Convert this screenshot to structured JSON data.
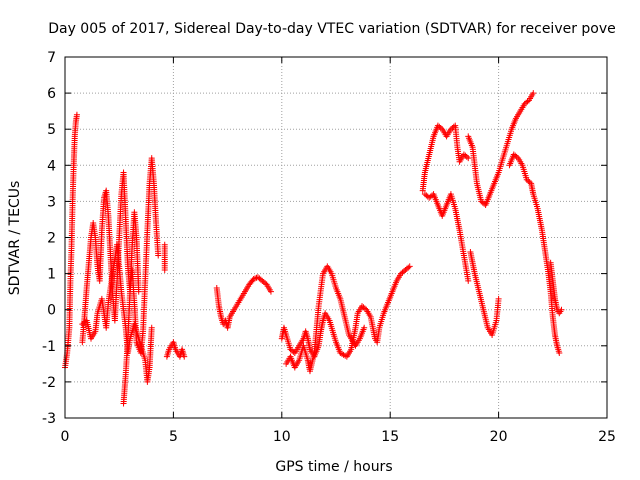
{
  "chart_data": {
    "type": "scatter",
    "title": "Day 005 of 2017, Sidereal Day-to-day VTEC variation (SDTVAR) for receiver pove",
    "xlabel": "GPS time / hours",
    "ylabel": "SDTVAR / TECUs",
    "xlim": [
      0,
      25
    ],
    "ylim": [
      -3,
      7
    ],
    "xticks": [
      0,
      5,
      10,
      15,
      20,
      25
    ],
    "yticks": [
      -3,
      -2,
      -1,
      0,
      1,
      2,
      3,
      4,
      5,
      6,
      7
    ],
    "grid": true,
    "marker": "+",
    "colors": {
      "points": "#ff0000",
      "grid": "#a0a0a0",
      "axes": "#000000"
    },
    "series": [
      {
        "name": "SDTVAR",
        "segments": [
          [
            [
              0.0,
              -1.6
            ],
            [
              0.1,
              -1.2
            ],
            [
              0.2,
              -0.5
            ],
            [
              0.25,
              0.8
            ],
            [
              0.3,
              1.7
            ],
            [
              0.35,
              3.0
            ],
            [
              0.4,
              4.0
            ],
            [
              0.45,
              4.8
            ],
            [
              0.5,
              5.2
            ],
            [
              0.55,
              5.4
            ]
          ],
          [
            [
              0.8,
              -0.9
            ],
            [
              0.9,
              -0.2
            ],
            [
              1.0,
              0.6
            ],
            [
              1.1,
              1.3
            ],
            [
              1.2,
              2.0
            ],
            [
              1.3,
              2.4
            ],
            [
              1.4,
              2.0
            ],
            [
              1.5,
              1.2
            ],
            [
              1.6,
              0.8
            ],
            [
              1.7,
              2.2
            ],
            [
              1.8,
              3.1
            ],
            [
              1.9,
              3.3
            ],
            [
              2.0,
              2.6
            ],
            [
              2.1,
              1.5
            ],
            [
              2.2,
              0.4
            ],
            [
              2.3,
              -0.3
            ],
            [
              2.4,
              0.8
            ],
            [
              2.5,
              2.0
            ],
            [
              2.6,
              3.2
            ],
            [
              2.7,
              3.8
            ],
            [
              2.8,
              2.5
            ],
            [
              2.9,
              1.2
            ],
            [
              3.0,
              0.5
            ],
            [
              3.1,
              1.8
            ],
            [
              3.2,
              2.7
            ],
            [
              3.3,
              2.0
            ],
            [
              3.4,
              0.5
            ]
          ],
          [
            [
              2.7,
              -2.6
            ],
            [
              2.8,
              -1.8
            ],
            [
              2.9,
              -0.8
            ],
            [
              3.0,
              0.5
            ],
            [
              3.1,
              1.1
            ],
            [
              3.2,
              0.2
            ],
            [
              3.3,
              -0.9
            ],
            [
              3.5,
              -1.2
            ],
            [
              3.6,
              -0.6
            ],
            [
              3.7,
              0.8
            ],
            [
              3.8,
              2.2
            ],
            [
              3.9,
              3.5
            ],
            [
              4.0,
              4.2
            ],
            [
              4.1,
              3.5
            ],
            [
              4.2,
              2.4
            ],
            [
              4.3,
              1.5
            ]
          ],
          [
            [
              0.8,
              -0.4
            ],
            [
              1.0,
              -0.3
            ],
            [
              1.2,
              -0.8
            ],
            [
              1.4,
              -0.6
            ],
            [
              1.5,
              -0.1
            ],
            [
              1.7,
              0.3
            ],
            [
              1.9,
              -0.5
            ],
            [
              2.0,
              0.2
            ],
            [
              2.2,
              1.0
            ],
            [
              2.4,
              1.8
            ],
            [
              2.5,
              1.2
            ],
            [
              2.6,
              0.5
            ],
            [
              2.8,
              -0.5
            ],
            [
              2.9,
              -1.2
            ],
            [
              3.0,
              -0.8
            ],
            [
              3.2,
              -0.4
            ],
            [
              3.5,
              -1.0
            ],
            [
              3.7,
              -1.4
            ],
            [
              3.8,
              -2.0
            ],
            [
              3.9,
              -1.6
            ],
            [
              4.0,
              -0.5
            ]
          ],
          [
            [
              4.6,
              1.8
            ],
            [
              4.6,
              1.1
            ]
          ],
          [
            [
              4.7,
              -1.3
            ],
            [
              4.8,
              -1.1
            ],
            [
              4.9,
              -1.0
            ],
            [
              5.0,
              -0.9
            ],
            [
              5.1,
              -1.1
            ],
            [
              5.3,
              -1.3
            ],
            [
              5.4,
              -1.1
            ],
            [
              5.5,
              -1.3
            ]
          ],
          [
            [
              7.0,
              0.6
            ],
            [
              7.1,
              0.1
            ],
            [
              7.2,
              -0.2
            ],
            [
              7.3,
              -0.4
            ],
            [
              7.4,
              -0.3
            ],
            [
              7.5,
              -0.5
            ],
            [
              7.6,
              -0.2
            ],
            [
              7.7,
              -0.1
            ],
            [
              7.9,
              0.1
            ],
            [
              8.1,
              0.3
            ],
            [
              8.3,
              0.5
            ],
            [
              8.5,
              0.7
            ],
            [
              8.7,
              0.85
            ],
            [
              8.9,
              0.9
            ],
            [
              9.1,
              0.8
            ],
            [
              9.3,
              0.7
            ],
            [
              9.5,
              0.5
            ]
          ],
          [
            [
              10.0,
              -0.8
            ],
            [
              10.1,
              -0.5
            ],
            [
              10.2,
              -0.7
            ],
            [
              10.4,
              -1.1
            ],
            [
              10.6,
              -1.2
            ],
            [
              10.8,
              -1.0
            ],
            [
              11.0,
              -0.8
            ],
            [
              11.1,
              -0.6
            ],
            [
              11.2,
              -0.8
            ],
            [
              11.3,
              -1.1
            ],
            [
              11.5,
              -1.3
            ],
            [
              11.7,
              -1.0
            ],
            [
              11.8,
              -0.6
            ],
            [
              11.9,
              -0.3
            ],
            [
              12.0,
              -0.1
            ],
            [
              12.2,
              -0.3
            ],
            [
              12.5,
              -0.9
            ],
            [
              12.7,
              -1.2
            ],
            [
              13.0,
              -1.3
            ],
            [
              13.2,
              -1.1
            ],
            [
              13.4,
              -0.5
            ],
            [
              13.5,
              -0.1
            ],
            [
              13.7,
              0.1
            ],
            [
              13.9,
              0.0
            ],
            [
              14.1,
              -0.2
            ],
            [
              14.3,
              -0.8
            ],
            [
              14.4,
              -0.9
            ],
            [
              14.5,
              -0.5
            ],
            [
              14.7,
              -0.1
            ],
            [
              14.9,
              0.2
            ],
            [
              15.1,
              0.5
            ],
            [
              15.3,
              0.8
            ],
            [
              15.5,
              1.0
            ],
            [
              15.7,
              1.1
            ],
            [
              15.9,
              1.2
            ]
          ],
          [
            [
              10.2,
              -1.5
            ],
            [
              10.4,
              -1.3
            ],
            [
              10.6,
              -1.6
            ],
            [
              10.8,
              -1.4
            ],
            [
              11.0,
              -1.0
            ],
            [
              11.2,
              -1.4
            ],
            [
              11.3,
              -1.7
            ],
            [
              11.5,
              -1.2
            ],
            [
              11.7,
              0.1
            ],
            [
              11.9,
              1.0
            ],
            [
              12.1,
              1.2
            ],
            [
              12.3,
              1.0
            ],
            [
              12.5,
              0.6
            ],
            [
              12.7,
              0.3
            ],
            [
              12.9,
              -0.2
            ],
            [
              13.1,
              -0.7
            ],
            [
              13.3,
              -0.9
            ],
            [
              13.4,
              -1.0
            ],
            [
              13.6,
              -0.8
            ],
            [
              13.8,
              -0.5
            ]
          ],
          [
            [
              16.5,
              3.3
            ],
            [
              16.6,
              3.8
            ],
            [
              16.8,
              4.3
            ],
            [
              17.0,
              4.8
            ],
            [
              17.2,
              5.1
            ],
            [
              17.4,
              5.0
            ],
            [
              17.6,
              4.8
            ],
            [
              17.8,
              5.0
            ],
            [
              18.0,
              5.1
            ],
            [
              18.1,
              4.5
            ],
            [
              18.2,
              4.1
            ],
            [
              18.4,
              4.3
            ],
            [
              18.6,
              4.2
            ]
          ],
          [
            [
              16.6,
              3.2
            ],
            [
              16.8,
              3.1
            ],
            [
              17.0,
              3.2
            ],
            [
              17.2,
              2.9
            ],
            [
              17.4,
              2.6
            ],
            [
              17.6,
              2.9
            ],
            [
              17.8,
              3.2
            ],
            [
              18.0,
              2.8
            ],
            [
              18.2,
              2.2
            ],
            [
              18.4,
              1.5
            ],
            [
              18.6,
              0.8
            ]
          ],
          [
            [
              18.6,
              4.8
            ],
            [
              18.8,
              4.5
            ],
            [
              19.0,
              3.5
            ],
            [
              19.2,
              3.0
            ],
            [
              19.4,
              2.9
            ],
            [
              19.6,
              3.2
            ],
            [
              19.8,
              3.5
            ],
            [
              20.0,
              3.8
            ],
            [
              20.2,
              4.2
            ],
            [
              20.4,
              4.6
            ],
            [
              20.6,
              5.0
            ],
            [
              20.8,
              5.3
            ],
            [
              21.0,
              5.5
            ],
            [
              21.2,
              5.7
            ],
            [
              21.4,
              5.8
            ],
            [
              21.6,
              6.0
            ]
          ],
          [
            [
              18.7,
              1.6
            ],
            [
              18.9,
              1.0
            ],
            [
              19.1,
              0.5
            ],
            [
              19.3,
              0.0
            ],
            [
              19.5,
              -0.5
            ],
            [
              19.7,
              -0.7
            ],
            [
              19.9,
              -0.3
            ],
            [
              20.0,
              0.3
            ]
          ],
          [
            [
              20.5,
              4.0
            ],
            [
              20.7,
              4.3
            ],
            [
              20.9,
              4.2
            ],
            [
              21.1,
              4.0
            ],
            [
              21.3,
              3.6
            ],
            [
              21.5,
              3.5
            ],
            [
              21.6,
              3.2
            ],
            [
              21.8,
              2.8
            ],
            [
              22.0,
              2.2
            ],
            [
              22.2,
              1.4
            ],
            [
              22.3,
              1.0
            ],
            [
              22.4,
              0.5
            ],
            [
              22.5,
              -0.2
            ],
            [
              22.6,
              -0.7
            ],
            [
              22.7,
              -1.0
            ],
            [
              22.8,
              -1.2
            ]
          ],
          [
            [
              22.4,
              1.3
            ],
            [
              22.5,
              0.8
            ],
            [
              22.6,
              0.3
            ],
            [
              22.7,
              0.0
            ],
            [
              22.8,
              -0.1
            ],
            [
              22.9,
              0.0
            ]
          ]
        ]
      }
    ]
  }
}
